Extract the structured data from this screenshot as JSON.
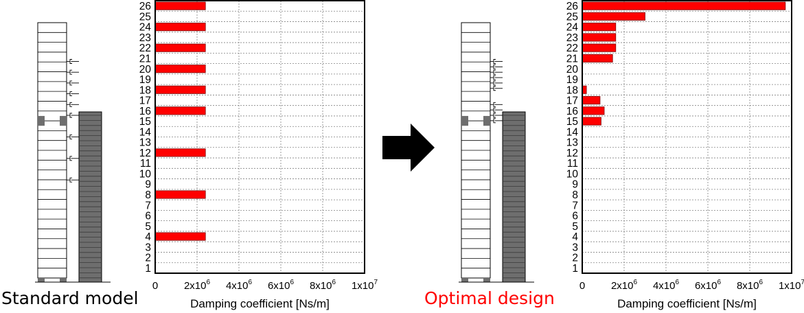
{
  "colors": {
    "bar": "#ff0000",
    "bar_edge": "#7a0000",
    "grid": "#808080",
    "axis": "#000000",
    "core": "#6e6e6e",
    "highlight_text": "#ff0000"
  },
  "captions": {
    "left": "Standard model",
    "right": "Optimal design"
  },
  "arrow": {
    "icon": "right-arrow-icon"
  },
  "chart_data": [
    {
      "type": "bar",
      "orientation": "horizontal",
      "categories": [
        "1",
        "2",
        "3",
        "4",
        "5",
        "6",
        "7",
        "8",
        "9",
        "10",
        "11",
        "12",
        "13",
        "14",
        "15",
        "16",
        "17",
        "18",
        "19",
        "20",
        "21",
        "22",
        "23",
        "24",
        "25",
        "26"
      ],
      "values": [
        0,
        0,
        0,
        2400000,
        0,
        0,
        0,
        2400000,
        0,
        0,
        0,
        2400000,
        0,
        0,
        0,
        2400000,
        0,
        2400000,
        0,
        2400000,
        0,
        2400000,
        0,
        2400000,
        0,
        2400000
      ],
      "xlabel": "Damping coefficient [Ns/m]",
      "xlim": [
        0,
        10000000
      ],
      "xticks": [
        {
          "value": 0,
          "base": "0",
          "exp": ""
        },
        {
          "value": 2000000,
          "base": "2x10",
          "exp": "6"
        },
        {
          "value": 4000000,
          "base": "4x10",
          "exp": "6"
        },
        {
          "value": 6000000,
          "base": "6x10",
          "exp": "6"
        },
        {
          "value": 8000000,
          "base": "8x10",
          "exp": "6"
        },
        {
          "value": 10000000,
          "base": "1x10",
          "exp": "7"
        }
      ],
      "grid": true
    },
    {
      "type": "bar",
      "orientation": "horizontal",
      "categories": [
        "1",
        "2",
        "3",
        "4",
        "5",
        "6",
        "7",
        "8",
        "9",
        "10",
        "11",
        "12",
        "13",
        "14",
        "15",
        "16",
        "17",
        "18",
        "19",
        "20",
        "21",
        "22",
        "23",
        "24",
        "25",
        "26"
      ],
      "values": [
        0,
        0,
        0,
        0,
        0,
        0,
        0,
        0,
        0,
        0,
        0,
        0,
        0,
        0,
        900000,
        1050000,
        850000,
        200000,
        0,
        0,
        1450000,
        1600000,
        1600000,
        1600000,
        3000000,
        9700000
      ],
      "xlabel": "Damping coefficient [Ns/m]",
      "xlim": [
        0,
        10000000
      ],
      "xticks": [
        {
          "value": 0,
          "base": "0",
          "exp": ""
        },
        {
          "value": 2000000,
          "base": "2x10",
          "exp": "6"
        },
        {
          "value": 4000000,
          "base": "4x10",
          "exp": "6"
        },
        {
          "value": 6000000,
          "base": "6x10",
          "exp": "6"
        },
        {
          "value": 8000000,
          "base": "8x10",
          "exp": "6"
        },
        {
          "value": 10000000,
          "base": "1x10",
          "exp": "7"
        }
      ],
      "grid": true
    }
  ],
  "buildings": [
    {
      "name": "standard",
      "damper_floors": [
        4,
        8,
        12,
        16,
        18,
        20,
        22,
        24,
        26
      ],
      "floors": 26
    },
    {
      "name": "optimal",
      "damper_floors": [
        15,
        16,
        17,
        18,
        21,
        22,
        23,
        24,
        25,
        26
      ],
      "floors": 26
    }
  ]
}
